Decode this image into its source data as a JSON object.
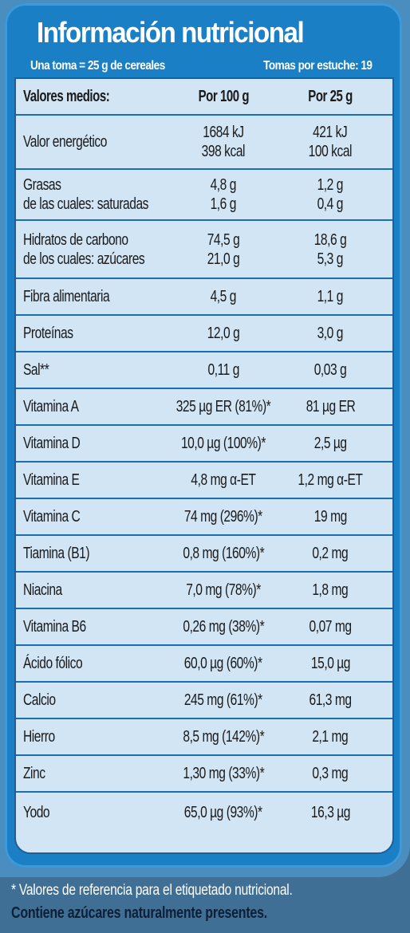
{
  "title": "Información nutricional",
  "serving": "Una toma = 25 g de cereales",
  "servings_per_box": "Tomas por estuche: 19",
  "header": {
    "label": "Valores medios:",
    "per100": "Por 100 g",
    "per25": "Por 25 g"
  },
  "rows": [
    {
      "label": [
        "Valor energético"
      ],
      "per100": [
        "1684 kJ",
        "398 kcal"
      ],
      "per25": [
        "421 kJ",
        "100 kcal"
      ]
    },
    {
      "label": [
        "Grasas",
        "de las cuales: saturadas"
      ],
      "per100": [
        "4,8  g",
        "1,6 g"
      ],
      "per25": [
        "1,2 g",
        "0,4 g"
      ]
    },
    {
      "label": [
        "Hidratos de carbono",
        "de los cuales: azúcares"
      ],
      "per100": [
        "74,5 g",
        "21,0 g"
      ],
      "per25": [
        "18,6 g",
        "5,3 g"
      ]
    },
    {
      "label": [
        "Fibra alimentaria"
      ],
      "per100": [
        "4,5 g"
      ],
      "per25": [
        "1,1 g"
      ]
    },
    {
      "label": [
        "Proteínas"
      ],
      "per100": [
        "12,0 g"
      ],
      "per25": [
        "3,0 g"
      ]
    },
    {
      "label": [
        "Sal**"
      ],
      "per100": [
        "0,11 g"
      ],
      "per25": [
        "0,03 g"
      ]
    },
    {
      "label": [
        "Vitamina A"
      ],
      "per100": [
        "325 µg ER (81%)*"
      ],
      "per25": [
        "81 µg ER"
      ]
    },
    {
      "label": [
        "Vitamina D"
      ],
      "per100": [
        "10,0 µg (100%)*"
      ],
      "per25": [
        "2,5 µg"
      ]
    },
    {
      "label": [
        "Vitamina E"
      ],
      "per100": [
        "4,8 mg  α-ET"
      ],
      "per25": [
        "1,2 mg α-ET"
      ]
    },
    {
      "label": [
        "Vitamina C"
      ],
      "per100": [
        "74 mg (296%)*"
      ],
      "per25": [
        "19 mg"
      ]
    },
    {
      "label": [
        "Tiamina (B1)"
      ],
      "per100": [
        "0,8 mg (160%)*"
      ],
      "per25": [
        "0,2 mg"
      ]
    },
    {
      "label": [
        "Niacina"
      ],
      "per100": [
        "7,0 mg (78%)*"
      ],
      "per25": [
        "1,8 mg"
      ]
    },
    {
      "label": [
        "Vitamina B6"
      ],
      "per100": [
        "0,26 mg (38%)*"
      ],
      "per25": [
        "0,07 mg"
      ]
    },
    {
      "label": [
        "Ácido fólico"
      ],
      "per100": [
        "60,0 µg (60%)*"
      ],
      "per25": [
        "15,0 µg"
      ]
    },
    {
      "label": [
        "Calcio"
      ],
      "per100": [
        "245 mg (61%)*"
      ],
      "per25": [
        "61,3 mg"
      ]
    },
    {
      "label": [
        "Hierro"
      ],
      "per100": [
        "8,5 mg (142%)*"
      ],
      "per25": [
        "2,1 mg"
      ]
    },
    {
      "label": [
        "Zinc"
      ],
      "per100": [
        "1,30 mg (33%)*"
      ],
      "per25": [
        "0,3 mg"
      ]
    },
    {
      "label": [
        "Yodo"
      ],
      "per100": [
        "65,0 µg (93%)*"
      ],
      "per25": [
        "16,3 µg"
      ]
    }
  ],
  "footnote": "* Valores de referencia para el etiquetado nutricional.",
  "footnote_bold": "Contiene azúcares naturalmente presentes.",
  "colors": {
    "background": "#3f6f95",
    "panel": "#1a7fc4",
    "table": "#d2e5f5",
    "rule": "#1a6fb0"
  }
}
